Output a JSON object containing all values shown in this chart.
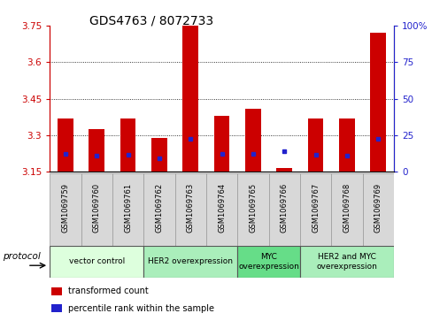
{
  "title": "GDS4763 / 8072733",
  "samples": [
    "GSM1069759",
    "GSM1069760",
    "GSM1069761",
    "GSM1069762",
    "GSM1069763",
    "GSM1069764",
    "GSM1069765",
    "GSM1069766",
    "GSM1069767",
    "GSM1069768",
    "GSM1069769"
  ],
  "bar_tops": [
    3.37,
    3.325,
    3.37,
    3.29,
    3.75,
    3.38,
    3.41,
    3.165,
    3.37,
    3.37,
    3.72
  ],
  "bar_bottom": 3.15,
  "blue_marker_vals": [
    3.225,
    3.215,
    3.22,
    3.205,
    3.285,
    3.225,
    3.225,
    3.235,
    3.22,
    3.215,
    3.285
  ],
  "ylim": [
    3.15,
    3.75
  ],
  "y_ticks_left": [
    3.15,
    3.3,
    3.45,
    3.6,
    3.75
  ],
  "y_ticks_right_vals": [
    0,
    25,
    50,
    75,
    100
  ],
  "y_ticks_right_pos": [
    3.15,
    3.3,
    3.45,
    3.6,
    3.75
  ],
  "grid_vals": [
    3.3,
    3.45,
    3.6
  ],
  "bar_color": "#cc0000",
  "blue_color": "#2222cc",
  "left_tick_color": "#cc0000",
  "right_tick_color": "#2222cc",
  "sample_box_color": "#d8d8d8",
  "groups": [
    {
      "label": "vector control",
      "start": 0,
      "end": 2,
      "color": "#ddffdd"
    },
    {
      "label": "HER2 overexpression",
      "start": 3,
      "end": 5,
      "color": "#aaeebb"
    },
    {
      "label": "MYC\noverexpression",
      "start": 6,
      "end": 7,
      "color": "#66dd88"
    },
    {
      "label": "HER2 and MYC\noverexpression",
      "start": 8,
      "end": 10,
      "color": "#aaeebb"
    }
  ],
  "protocol_label": "protocol",
  "legend_items": [
    {
      "color": "#cc0000",
      "label": "transformed count"
    },
    {
      "color": "#2222cc",
      "label": "percentile rank within the sample"
    }
  ]
}
